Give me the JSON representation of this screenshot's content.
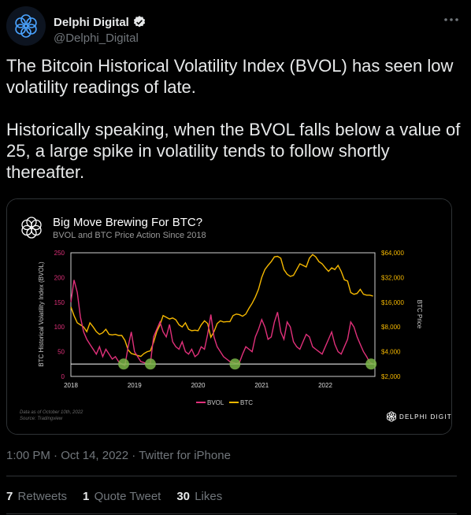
{
  "author": {
    "name": "Delphi Digital",
    "handle": "@Delphi_Digital"
  },
  "tweet": {
    "text": "The Bitcoin Historical Volatility Index (BVOL) has seen low volatility readings of late.\n\nHistorically speaking, when the BVOL falls below a value of 25, a large spike in volatility tends to follow shortly thereafter."
  },
  "meta": {
    "time": "1:00 PM",
    "date": "Oct 14, 2022",
    "source": "Twitter for iPhone"
  },
  "stats": {
    "retweets_count": "7",
    "retweets_label": "Retweets",
    "quotes_count": "1",
    "quotes_label": "Quote Tweet",
    "likes_count": "30",
    "likes_label": "Likes"
  },
  "chart_brand": "DELPHI DIGITAL",
  "chart_footnote": [
    "Data as of October 10th, 2022",
    "Source: Tradingview"
  ],
  "colors": {
    "bvol": "#e0307a",
    "btc": "#f5b800",
    "threshold": "#ffffff",
    "marker": "#7ab648"
  },
  "chart_data": {
    "type": "line",
    "title": "Big Move Brewing For BTC?",
    "subtitle": "BVOL and BTC Price Action Since 2018",
    "ylabel_left": "BTC Historical Volatility Index (BVOL)",
    "ylabel_right": "BTC Price",
    "left_ticks": [
      "0",
      "50",
      "100",
      "150",
      "200",
      "250"
    ],
    "right_ticks": [
      "$2,000",
      "$4,000",
      "$8,000",
      "$16,000",
      "$32,000",
      "$64,000"
    ],
    "x_ticks": [
      "2018",
      "2019",
      "2020",
      "2021",
      "2022"
    ],
    "ylim_left": [
      0,
      250
    ],
    "ylim_right_log2": [
      2000,
      64000
    ],
    "threshold": 25,
    "legend": [
      "BVOL",
      "BTC"
    ],
    "low_vol_markers": [
      2018.83,
      2019.25,
      2020.58,
      2022.72
    ],
    "series": [
      {
        "name": "BVOL",
        "x": [
          2018.0,
          2018.05,
          2018.1,
          2018.15,
          2018.2,
          2018.25,
          2018.3,
          2018.35,
          2018.4,
          2018.45,
          2018.5,
          2018.55,
          2018.6,
          2018.65,
          2018.7,
          2018.75,
          2018.8,
          2018.85,
          2018.9,
          2018.95,
          2019.0,
          2019.05,
          2019.1,
          2019.15,
          2019.2,
          2019.25,
          2019.3,
          2019.35,
          2019.4,
          2019.45,
          2019.5,
          2019.55,
          2019.6,
          2019.65,
          2019.7,
          2019.75,
          2019.8,
          2019.85,
          2019.9,
          2019.95,
          2020.0,
          2020.05,
          2020.1,
          2020.15,
          2020.2,
          2020.25,
          2020.3,
          2020.35,
          2020.4,
          2020.45,
          2020.5,
          2020.55,
          2020.6,
          2020.65,
          2020.7,
          2020.75,
          2020.8,
          2020.85,
          2020.9,
          2020.95,
          2021.0,
          2021.05,
          2021.1,
          2021.15,
          2021.2,
          2021.25,
          2021.3,
          2021.35,
          2021.4,
          2021.45,
          2021.5,
          2021.55,
          2021.6,
          2021.65,
          2021.7,
          2021.75,
          2021.8,
          2021.85,
          2021.9,
          2021.95,
          2022.0,
          2022.05,
          2022.1,
          2022.15,
          2022.2,
          2022.25,
          2022.3,
          2022.35,
          2022.4,
          2022.45,
          2022.5,
          2022.55,
          2022.6,
          2022.65,
          2022.7,
          2022.75
        ],
        "values": [
          150,
          195,
          170,
          120,
          90,
          75,
          65,
          55,
          45,
          60,
          40,
          55,
          45,
          35,
          40,
          30,
          25,
          22,
          60,
          90,
          50,
          40,
          30,
          28,
          25,
          26,
          80,
          95,
          110,
          90,
          80,
          105,
          70,
          60,
          55,
          70,
          50,
          45,
          55,
          40,
          45,
          60,
          55,
          85,
          125,
          80,
          60,
          50,
          40,
          35,
          30,
          28,
          26,
          28,
          45,
          60,
          55,
          50,
          80,
          95,
          115,
          100,
          75,
          80,
          110,
          130,
          90,
          75,
          110,
          100,
          70,
          60,
          55,
          70,
          85,
          80,
          60,
          55,
          50,
          45,
          60,
          75,
          90,
          65,
          50,
          45,
          60,
          75,
          110,
          100,
          80,
          65,
          50,
          40,
          28,
          25
        ]
      },
      {
        "name": "BTC",
        "x": [
          2018.0,
          2018.05,
          2018.1,
          2018.15,
          2018.2,
          2018.25,
          2018.3,
          2018.35,
          2018.4,
          2018.45,
          2018.5,
          2018.55,
          2018.6,
          2018.65,
          2018.7,
          2018.75,
          2018.8,
          2018.85,
          2018.9,
          2018.95,
          2019.0,
          2019.05,
          2019.1,
          2019.15,
          2019.2,
          2019.25,
          2019.3,
          2019.35,
          2019.4,
          2019.45,
          2019.5,
          2019.55,
          2019.6,
          2019.65,
          2019.7,
          2019.75,
          2019.8,
          2019.85,
          2019.9,
          2019.95,
          2020.0,
          2020.05,
          2020.1,
          2020.15,
          2020.2,
          2020.25,
          2020.3,
          2020.35,
          2020.4,
          2020.45,
          2020.5,
          2020.55,
          2020.6,
          2020.65,
          2020.7,
          2020.75,
          2020.8,
          2020.85,
          2020.9,
          2020.95,
          2021.0,
          2021.05,
          2021.1,
          2021.15,
          2021.2,
          2021.25,
          2021.3,
          2021.35,
          2021.4,
          2021.45,
          2021.5,
          2021.55,
          2021.6,
          2021.65,
          2021.7,
          2021.75,
          2021.8,
          2021.85,
          2021.9,
          2021.95,
          2022.0,
          2022.05,
          2022.1,
          2022.15,
          2022.2,
          2022.25,
          2022.3,
          2022.35,
          2022.4,
          2022.45,
          2022.5,
          2022.55,
          2022.6,
          2022.65,
          2022.7,
          2022.75
        ],
        "values": [
          14000,
          11000,
          9000,
          8500,
          8000,
          7000,
          9000,
          8000,
          7000,
          6500,
          6800,
          7500,
          6500,
          6400,
          6500,
          6300,
          6300,
          5500,
          4200,
          3800,
          3700,
          3600,
          3500,
          3800,
          4000,
          4100,
          5200,
          7000,
          8500,
          11000,
          10500,
          10000,
          10300,
          9800,
          8500,
          8000,
          9000,
          7500,
          7200,
          7300,
          7200,
          8500,
          9500,
          8800,
          6000,
          7000,
          8800,
          9500,
          9200,
          9300,
          9300,
          11000,
          11500,
          11300,
          10800,
          11500,
          13500,
          15500,
          18500,
          23000,
          32000,
          40000,
          45000,
          50000,
          57000,
          58000,
          55000,
          40000,
          35000,
          33000,
          34000,
          40000,
          47000,
          45000,
          43000,
          55000,
          61000,
          57000,
          50000,
          47000,
          42000,
          38000,
          42000,
          40000,
          45000,
          38000,
          30000,
          29000,
          21000,
          20000,
          20500,
          23000,
          20000,
          19500,
          19500,
          19000
        ]
      }
    ]
  }
}
